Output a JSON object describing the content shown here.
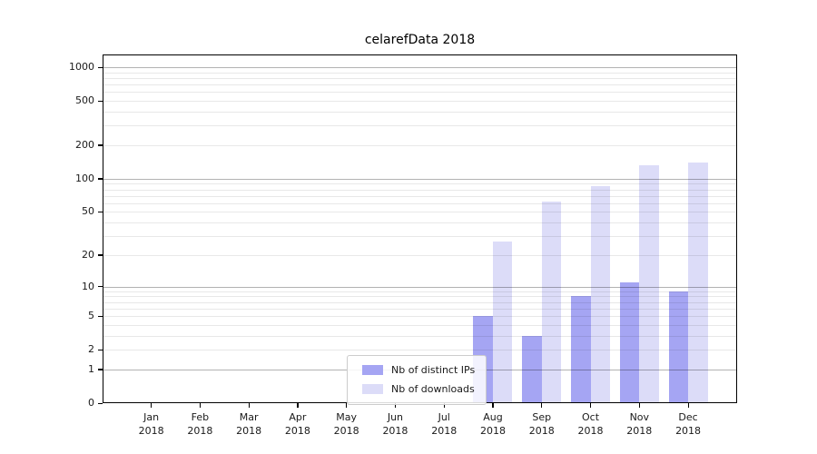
{
  "background_color": "#ffffff",
  "chart_data": {
    "type": "bar",
    "title": "celarefData 2018",
    "xlabel": "",
    "ylabel": "",
    "yscale": "log1p",
    "grid": "horizontal",
    "legend_position": "lower-center-inside",
    "year": "2018",
    "categories": [
      "Jan",
      "Feb",
      "Mar",
      "Apr",
      "May",
      "Jun",
      "Jul",
      "Aug",
      "Sep",
      "Oct",
      "Nov",
      "Dec"
    ],
    "series": [
      {
        "name": "Nb of distinct IPs",
        "color": "#a5a5f3",
        "values": [
          0,
          0,
          0,
          0,
          0,
          0,
          0,
          5,
          3,
          8,
          11,
          9
        ]
      },
      {
        "name": "Nb of downloads",
        "color": "#dcdcf8",
        "values": [
          0,
          0,
          0,
          0,
          0,
          0,
          0,
          27,
          62,
          85,
          132,
          139
        ]
      }
    ],
    "yticks": [
      0,
      1,
      2,
      5,
      10,
      20,
      50,
      100,
      200,
      500,
      1000
    ],
    "minor_gridline_values": [
      2,
      3,
      4,
      5,
      6,
      7,
      8,
      9,
      20,
      30,
      40,
      50,
      60,
      70,
      80,
      90,
      200,
      300,
      400,
      500,
      600,
      700,
      800,
      900
    ],
    "decade_gridline_values": [
      1,
      10,
      100,
      1000
    ],
    "ylim": [
      0,
      1300
    ],
    "colors": {
      "light_grid": "#e8e8e8",
      "decade_grid": "#b3b3b3",
      "axis": "#000000",
      "text": "#1a1a1a"
    }
  }
}
